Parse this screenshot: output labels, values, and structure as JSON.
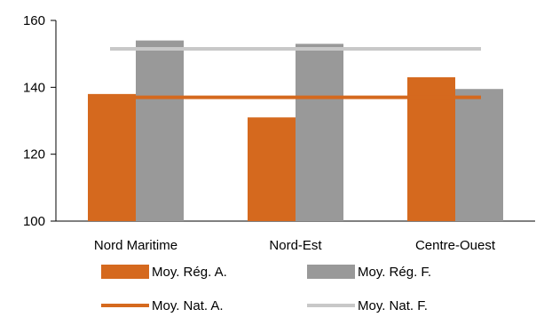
{
  "chart_data": {
    "type": "bar",
    "title": "",
    "xlabel": "",
    "ylabel": "",
    "categories": [
      "Nord Maritime",
      "Nord-Est",
      "Centre-Ouest"
    ],
    "series": [
      {
        "name": "Moy. Rég. A.",
        "values": [
          138,
          131,
          143
        ],
        "color": "#d5691e"
      },
      {
        "name": "Moy. Rég. F.",
        "values": [
          154,
          153,
          139.5
        ],
        "color": "#999999"
      }
    ],
    "reference_lines": [
      {
        "name": "Moy. Nat. A.",
        "value": 137,
        "color": "#d5691e"
      },
      {
        "name": "Moy. Nat. F.",
        "value": 151.5,
        "color": "#c8c8c8"
      }
    ],
    "ylim": [
      100,
      160
    ],
    "yticks": [
      100,
      120,
      140,
      160
    ],
    "grid": false,
    "legend_position": "bottom"
  }
}
